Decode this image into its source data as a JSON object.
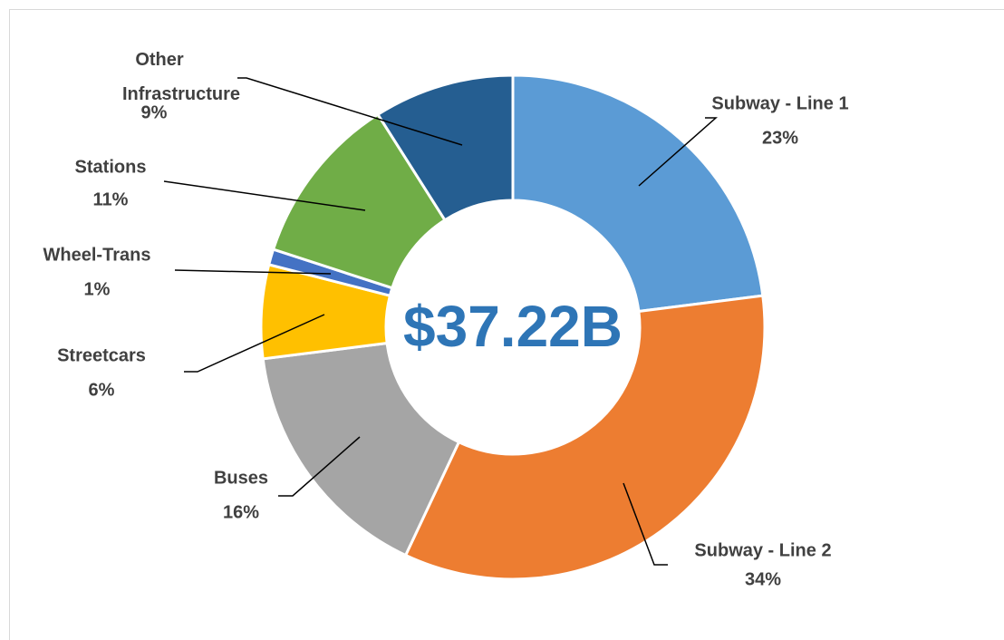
{
  "chart_data": {
    "type": "donut",
    "center_label": "$37.22B",
    "categories": [
      "Subway - Line 1",
      "Subway - Line 2",
      "Buses",
      "Streetcars",
      "Wheel-Trans",
      "Stations",
      "Other Infrastructure"
    ],
    "values": [
      23,
      34,
      16,
      6,
      1,
      11,
      9
    ],
    "value_labels": [
      "23%",
      "34%",
      "16%",
      "6%",
      "1%",
      "11%",
      "9%"
    ],
    "colors": [
      "#5b9bd5",
      "#ed7d31",
      "#a5a5a5",
      "#ffc000",
      "#4472c4",
      "#70ad47",
      "#255e91"
    ]
  }
}
